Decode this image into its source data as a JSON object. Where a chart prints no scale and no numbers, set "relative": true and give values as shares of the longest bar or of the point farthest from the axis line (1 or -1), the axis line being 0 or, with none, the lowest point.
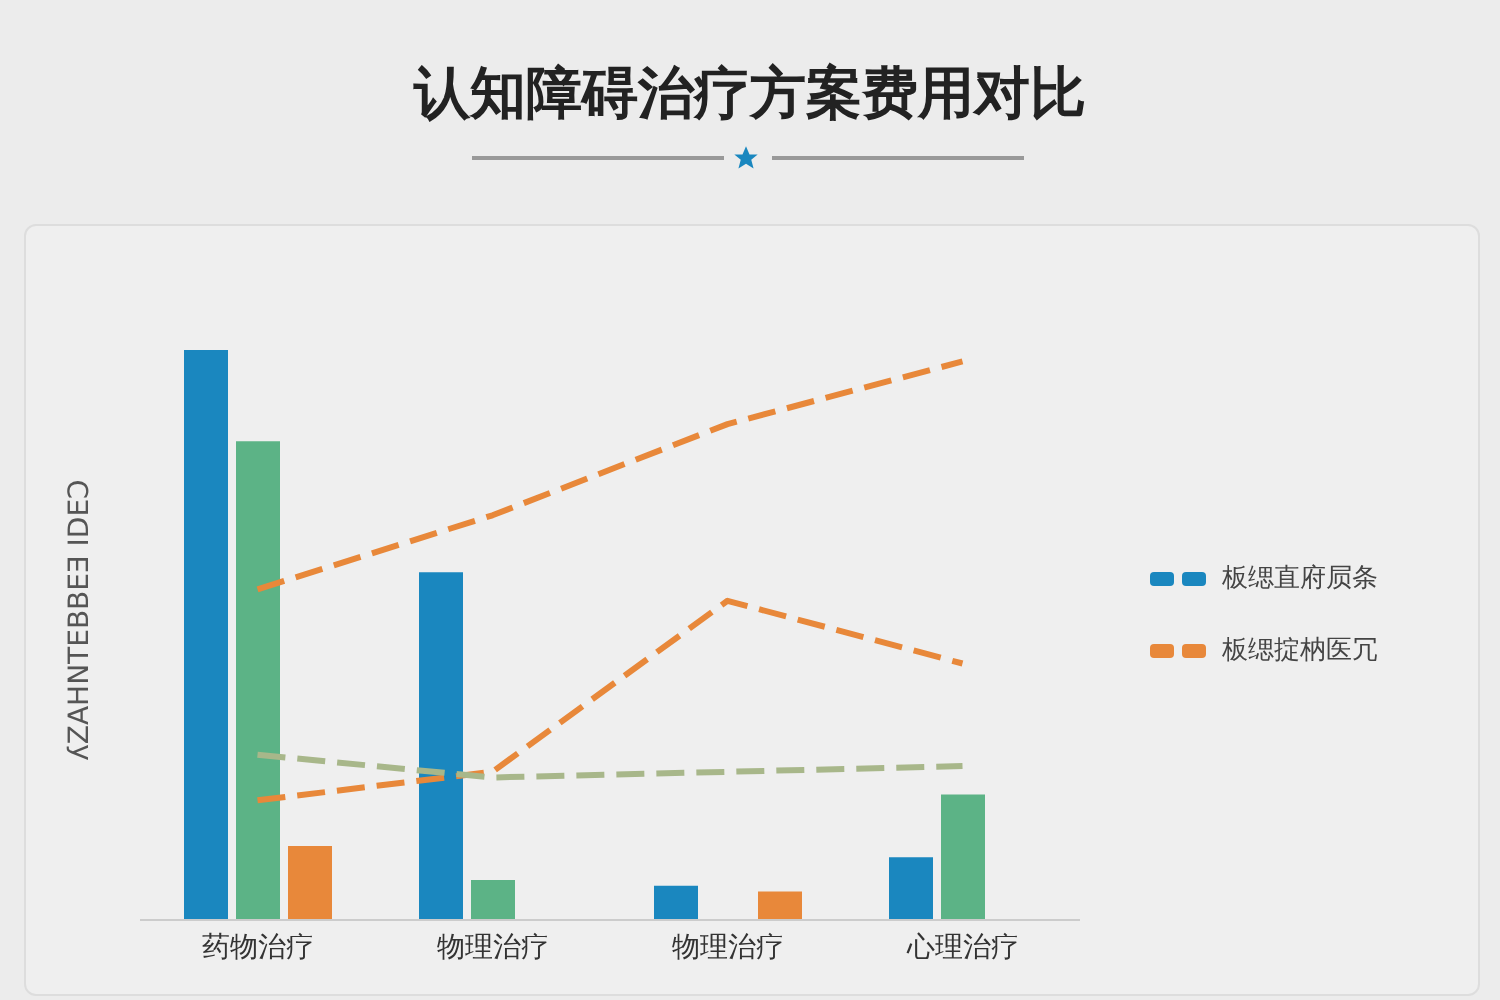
{
  "chart_data": {
    "type": "bar",
    "title": "认知障碍治疗方案费用对比",
    "ylabel": "ʎZAHNTEBBEƎ IDEƆ",
    "categories": [
      "药物治疗",
      "物理治疗",
      "物理治疗",
      "心理治疗"
    ],
    "relative": true,
    "legend": "right",
    "series": [
      {
        "name": "板缌直府屃条",
        "color": "#1a87bf",
        "values": [
          1,
          0.61,
          0.06,
          0.11
        ]
      },
      {
        "color": "#5cb386",
        "values": [
          0.84,
          0.07,
          null,
          0.22
        ]
      },
      {
        "name": "板缌掟枘医冗",
        "color": "#e8883a",
        "values": [
          0.13,
          null,
          0.05,
          null
        ]
      },
      {
        "type": "line",
        "color": "#e8883a",
        "line_style": "dashed",
        "values": [
          0.58,
          0.71,
          0.87,
          0.98
        ]
      },
      {
        "type": "line",
        "color": "#e8883a",
        "line_style": "dashed",
        "values": [
          0.21,
          0.26,
          0.56,
          0.45
        ]
      },
      {
        "type": "line",
        "color": "#a8b78a",
        "line_style": "dashed",
        "values": [
          0.29,
          0.25,
          0.26,
          0.27
        ]
      }
    ]
  }
}
